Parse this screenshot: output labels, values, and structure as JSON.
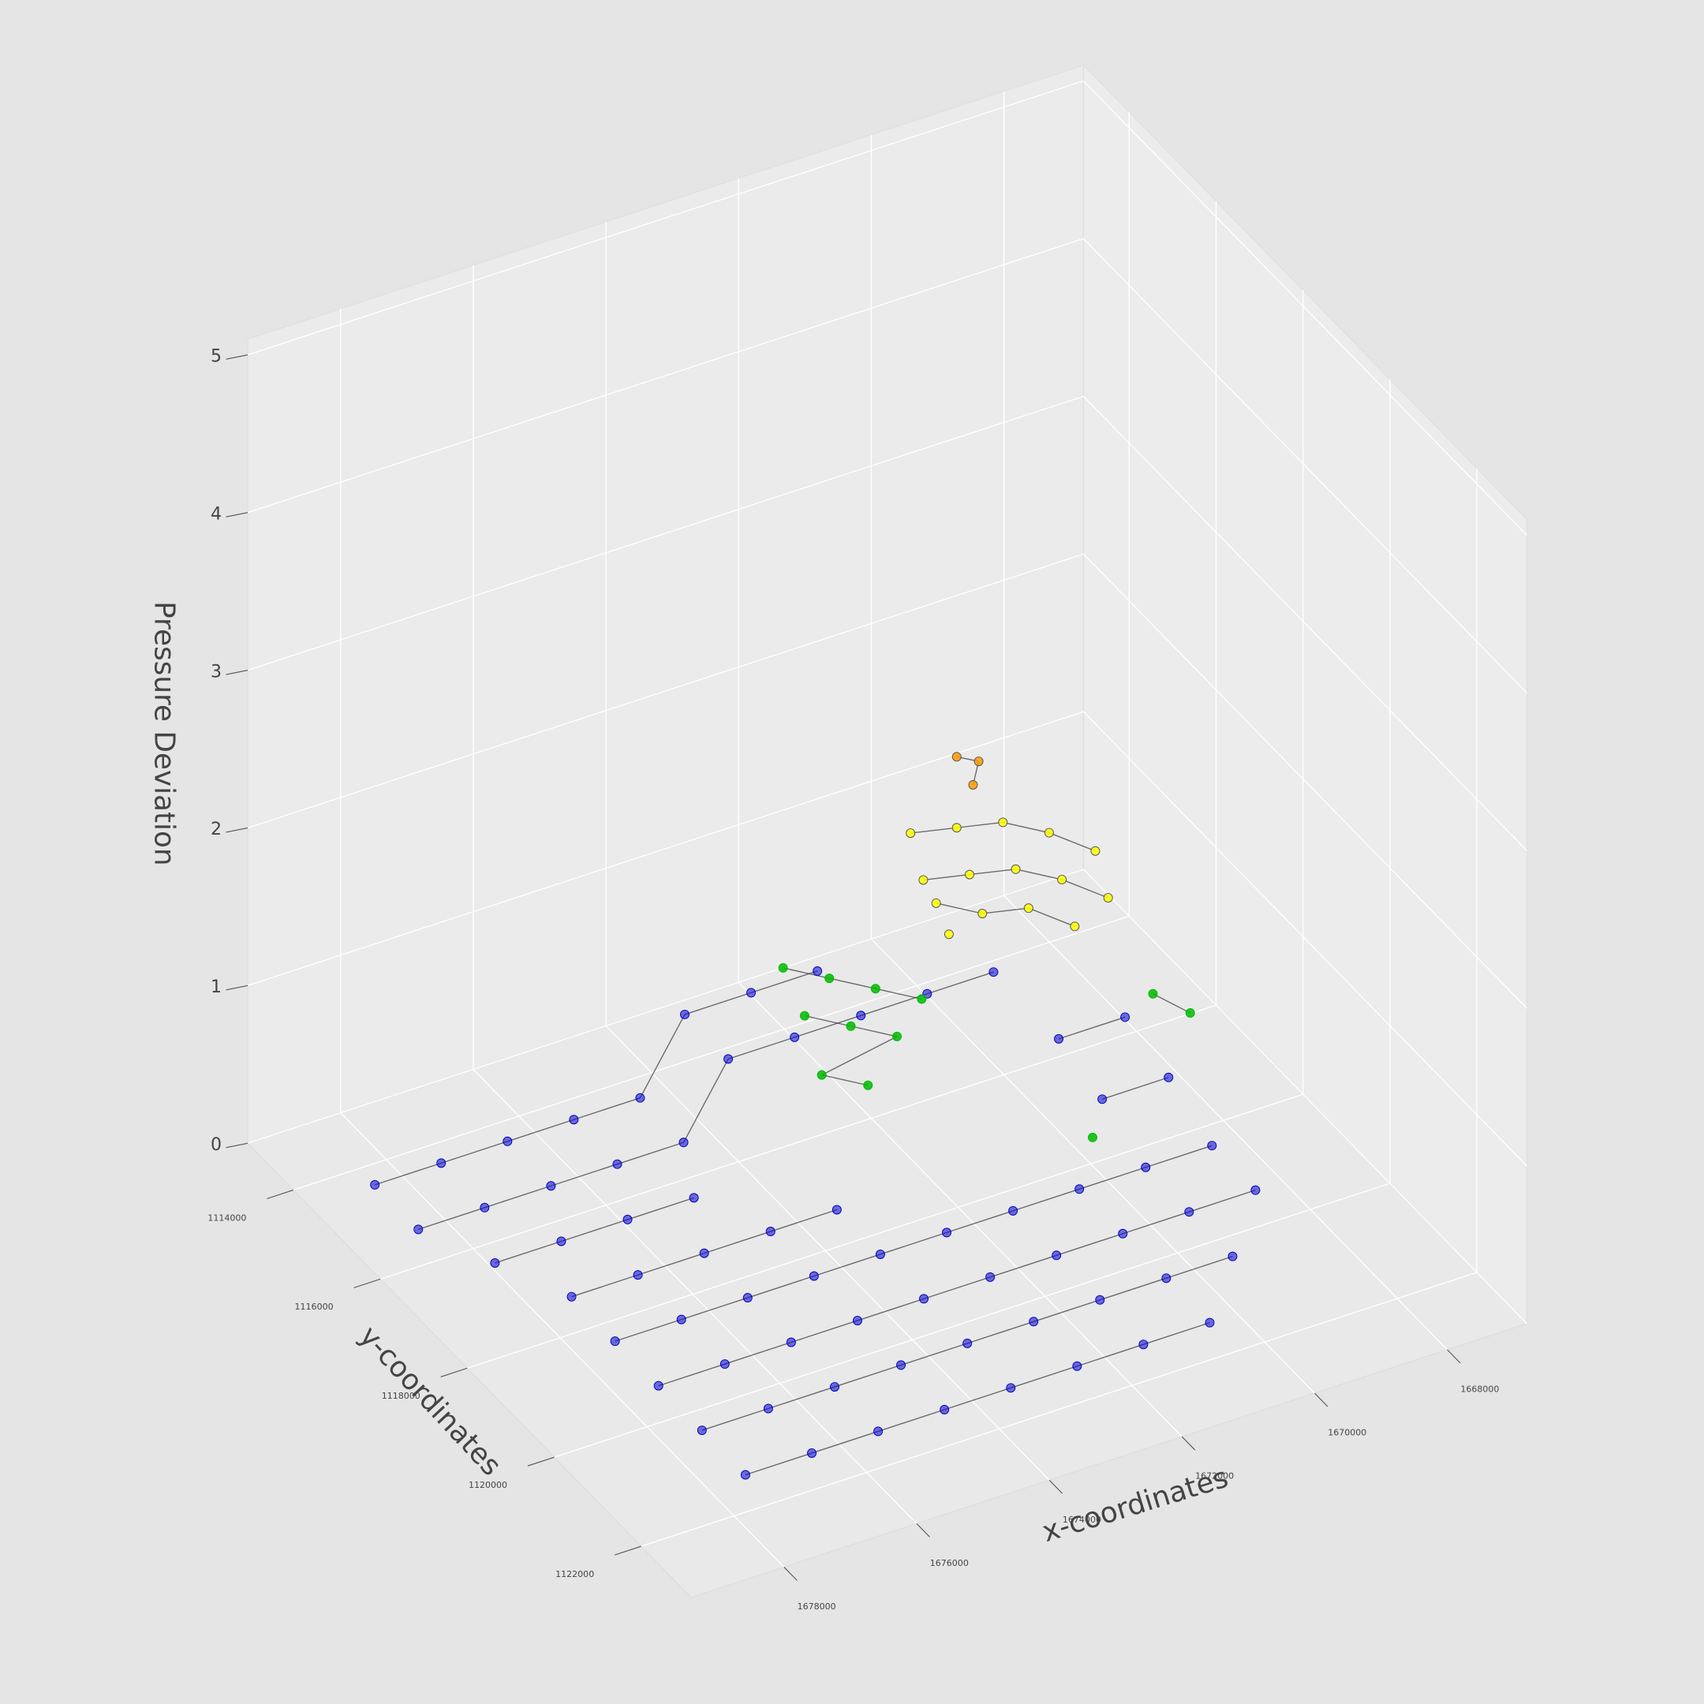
{
  "chart_data": {
    "type": "scatter3d",
    "xlabel": "x-coordinates",
    "ylabel": "y-coordinates",
    "zlabel": "Pressure Deviation",
    "xlim": [
      1666800,
      1679400
    ],
    "ylim": [
      1112950,
      1123150
    ],
    "zlim": [
      0,
      5.1
    ],
    "xticks": [
      1668000,
      1670000,
      1672000,
      1674000,
      1676000,
      1678000
    ],
    "yticks": [
      1114000,
      1116000,
      1118000,
      1120000,
      1122000
    ],
    "zticks": [
      0,
      1,
      2,
      3,
      4,
      5
    ],
    "grid": true,
    "series": [
      {
        "color": "#0000cc",
        "x": [
          1671500,
          1672500,
          1673500,
          1674500,
          1675500,
          1676500,
          1677500,
          1678500,
          1669500,
          1670500,
          1671500,
          1672500,
          1673500,
          1674500,
          1675500,
          1676500,
          1677500,
          1678500,
          1668500,
          1669500,
          1675000,
          1676000,
          1677000,
          1678000,
          1668500,
          1669500,
          1673500,
          1674500,
          1675500,
          1676500,
          1677500,
          1668500,
          1669500,
          1670500,
          1671500,
          1672500,
          1673500,
          1674500,
          1675500,
          1676500,
          1677500,
          1668500,
          1669500,
          1670500,
          1671500,
          1672500,
          1673500,
          1674500,
          1675500,
          1676500,
          1677500,
          1669500,
          1670500,
          1671500,
          1672500,
          1673500,
          1674500,
          1675500,
          1676500,
          1677500,
          1670500,
          1671500,
          1672500,
          1673500,
          1674500,
          1675500,
          1676500,
          1677500
        ],
        "y": [
          1114000,
          1114000,
          1114000,
          1114500,
          1114500,
          1114500,
          1114500,
          1114500,
          1115000,
          1115000,
          1115000,
          1115000,
          1115000,
          1115500,
          1115500,
          1115500,
          1115500,
          1115500,
          1116500,
          1116500,
          1116500,
          1116500,
          1116500,
          1116500,
          1117500,
          1117500,
          1117500,
          1117500,
          1117500,
          1117500,
          1117500,
          1118500,
          1118500,
          1118500,
          1118500,
          1118500,
          1118500,
          1118500,
          1118500,
          1118500,
          1118500,
          1119500,
          1119500,
          1119500,
          1119500,
          1119500,
          1119500,
          1119500,
          1119500,
          1119500,
          1119500,
          1120500,
          1120500,
          1120500,
          1120500,
          1120500,
          1120500,
          1120500,
          1120500,
          1120500,
          1121500,
          1121500,
          1121500,
          1121500,
          1121500,
          1121500,
          1121500,
          1121500
        ],
        "z": [
          0.3,
          0.3,
          0.3,
          0.05,
          0.05,
          0.05,
          0.05,
          0.05,
          0.3,
          0.3,
          0.3,
          0.3,
          0.3,
          0.05,
          0.05,
          0.05,
          0.05,
          0.05,
          0.3,
          0.3,
          0.05,
          0.05,
          0.05,
          0.05,
          0.2,
          0.2,
          0.05,
          0.05,
          0.05,
          0.05,
          0.05,
          0.05,
          0.05,
          0.05,
          0.05,
          0.05,
          0.05,
          0.05,
          0.05,
          0.05,
          0.05,
          0.05,
          0.05,
          0.05,
          0.05,
          0.05,
          0.05,
          0.05,
          0.05,
          0.05,
          0.05,
          0.05,
          0.05,
          0.05,
          0.05,
          0.05,
          0.05,
          0.05,
          0.05,
          0.05,
          0.05,
          0.05,
          0.05,
          0.05,
          0.05,
          0.05,
          0.05,
          0.05
        ]
      },
      {
        "color": "#00bb00",
        "x": [
          1673000,
          1672500,
          1672000,
          1671500,
          1673200,
          1672700,
          1672200,
          1673400,
          1672900,
          1668800,
          1668500,
          1670300
        ],
        "y": [
          1115500,
          1115800,
          1116100,
          1116400,
          1116300,
          1116600,
          1116900,
          1117000,
          1117300,
          1117600,
          1118000,
          1118500
        ],
        "z": [
          0.95,
          0.9,
          0.85,
          0.8,
          0.9,
          0.85,
          0.8,
          0.75,
          0.7,
          0.8,
          0.75,
          0.35
        ]
      },
      {
        "color": "#ffff00",
        "x": [
          1671800,
          1671300,
          1670800,
          1670300,
          1669800,
          1672000,
          1671500,
          1671000,
          1670500,
          1670000,
          1672200,
          1671700,
          1671200,
          1670700,
          1672400
        ],
        "y": [
          1116600,
          1116900,
          1117200,
          1117500,
          1117800,
          1117200,
          1117500,
          1117800,
          1118100,
          1118400,
          1117800,
          1118100,
          1118400,
          1118700,
          1118400
        ],
        "z": [
          1.95,
          2.0,
          2.05,
          2.0,
          1.9,
          1.85,
          1.9,
          1.95,
          1.9,
          1.8,
          1.9,
          1.85,
          1.9,
          1.8,
          1.9
        ]
      },
      {
        "color": "#ff9900",
        "x": [
          1671300,
          1671100,
          1671250
        ],
        "y": [
          1116900,
          1117100,
          1117200
        ],
        "z": [
          2.45,
          2.45,
          2.35
        ]
      }
    ]
  }
}
